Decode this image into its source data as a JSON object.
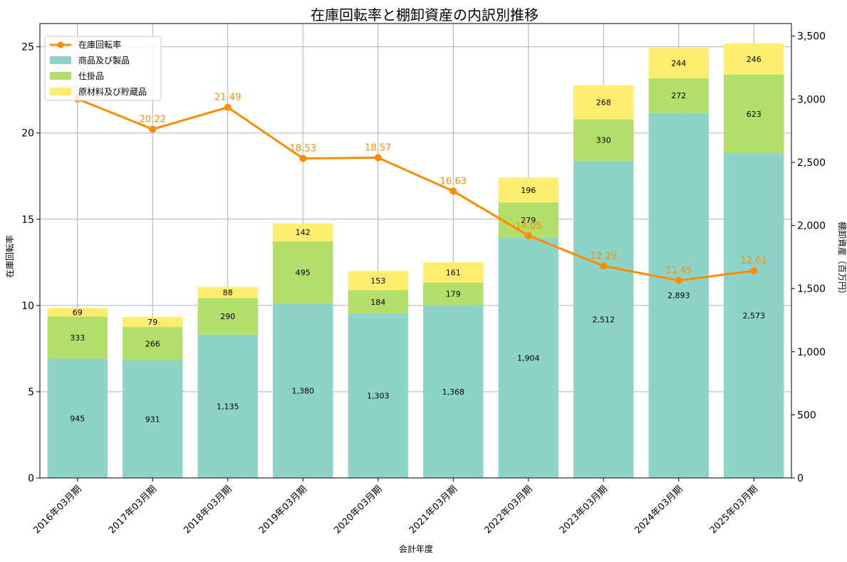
{
  "chart_data": {
    "type": "bar",
    "title": "在庫回転率と棚卸資産の内訳別推移",
    "xlabel": "会計年度",
    "ylabel_left": "在庫回転率",
    "ylabel_right": "棚卸資産（百万円）",
    "categories": [
      "2016年03月期",
      "2017年03月期",
      "2018年03月期",
      "2019年03月期",
      "2020年03月期",
      "2021年03月期",
      "2022年03月期",
      "2023年03月期",
      "2024年03月期",
      "2025年03月期"
    ],
    "left_axis": {
      "ylim": [
        0,
        26.35
      ],
      "ticks": [
        0,
        5,
        10,
        15,
        20,
        25
      ],
      "tick_labels": [
        "0",
        "5",
        "10",
        "15",
        "20",
        "25"
      ]
    },
    "right_axis": {
      "ylim": [
        0,
        3600
      ],
      "ticks": [
        0,
        500,
        1000,
        1500,
        2000,
        2500,
        3000,
        3500
      ],
      "tick_labels": [
        "0",
        "500",
        "1,000",
        "1,500",
        "2,000",
        "2,500",
        "3,000",
        "3,500"
      ]
    },
    "grid": true,
    "legend_position": "top-left",
    "line": {
      "name": "在庫回転率",
      "color": "#ff8c00",
      "values": [
        21.98,
        20.22,
        21.49,
        18.53,
        18.57,
        16.63,
        14.05,
        12.29,
        11.45,
        12.01
      ],
      "labels": [
        "21.98",
        "20.22",
        "21.49",
        "18.53",
        "18.57",
        "16.63",
        "14.05",
        "12.29",
        "11.45",
        "12.01"
      ]
    },
    "series": [
      {
        "name": "商品及び製品",
        "color": "#8dd3c7",
        "values": [
          945,
          931,
          1135,
          1380,
          1303,
          1368,
          1904,
          2512,
          2893,
          2573
        ],
        "labels": [
          "945",
          "931",
          "1,135",
          "1,380",
          "1,303",
          "1,368",
          "1,904",
          "2,512",
          "2,893",
          "2,573"
        ]
      },
      {
        "name": "仕掛品",
        "color": "#b3de69",
        "values": [
          333,
          266,
          290,
          495,
          184,
          179,
          279,
          330,
          272,
          623
        ],
        "labels": [
          "333",
          "266",
          "290",
          "495",
          "184",
          "179",
          "279",
          "330",
          "272",
          "623"
        ]
      },
      {
        "name": "原材料及び貯蔵品",
        "color": "#ffed6f",
        "values": [
          69,
          79,
          88,
          142,
          153,
          161,
          196,
          268,
          244,
          246
        ],
        "labels": [
          "69",
          "79",
          "88",
          "142",
          "153",
          "161",
          "196",
          "268",
          "244",
          "246"
        ]
      }
    ]
  }
}
